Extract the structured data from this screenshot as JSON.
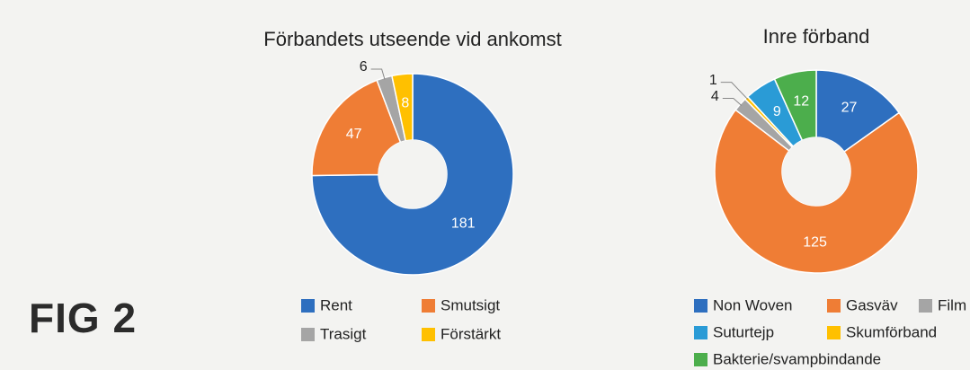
{
  "fig_label": "FIG 2",
  "chart_data": [
    {
      "type": "donut",
      "title": "Förbandets utseende vid ankomst",
      "categories": [
        "Rent",
        "Smutsigt",
        "Trasigt",
        "Förstärkt"
      ],
      "values": [
        181,
        47,
        6,
        8
      ],
      "colors": [
        "#2e6fbf",
        "#ef7d35",
        "#a5a5a5",
        "#ffc000"
      ]
    },
    {
      "type": "donut",
      "title": "Inre förband",
      "categories": [
        "Non Woven",
        "Gasväv",
        "Film",
        "Suturtejp",
        "Skumförband",
        "Bakterie/svampbindande"
      ],
      "values": [
        27,
        125,
        4,
        9,
        1,
        12
      ],
      "colors": [
        "#2e6fbf",
        "#ef7d35",
        "#a5a5a5",
        "#2a9bd6",
        "#ffc000",
        "#4cae4c"
      ]
    }
  ]
}
